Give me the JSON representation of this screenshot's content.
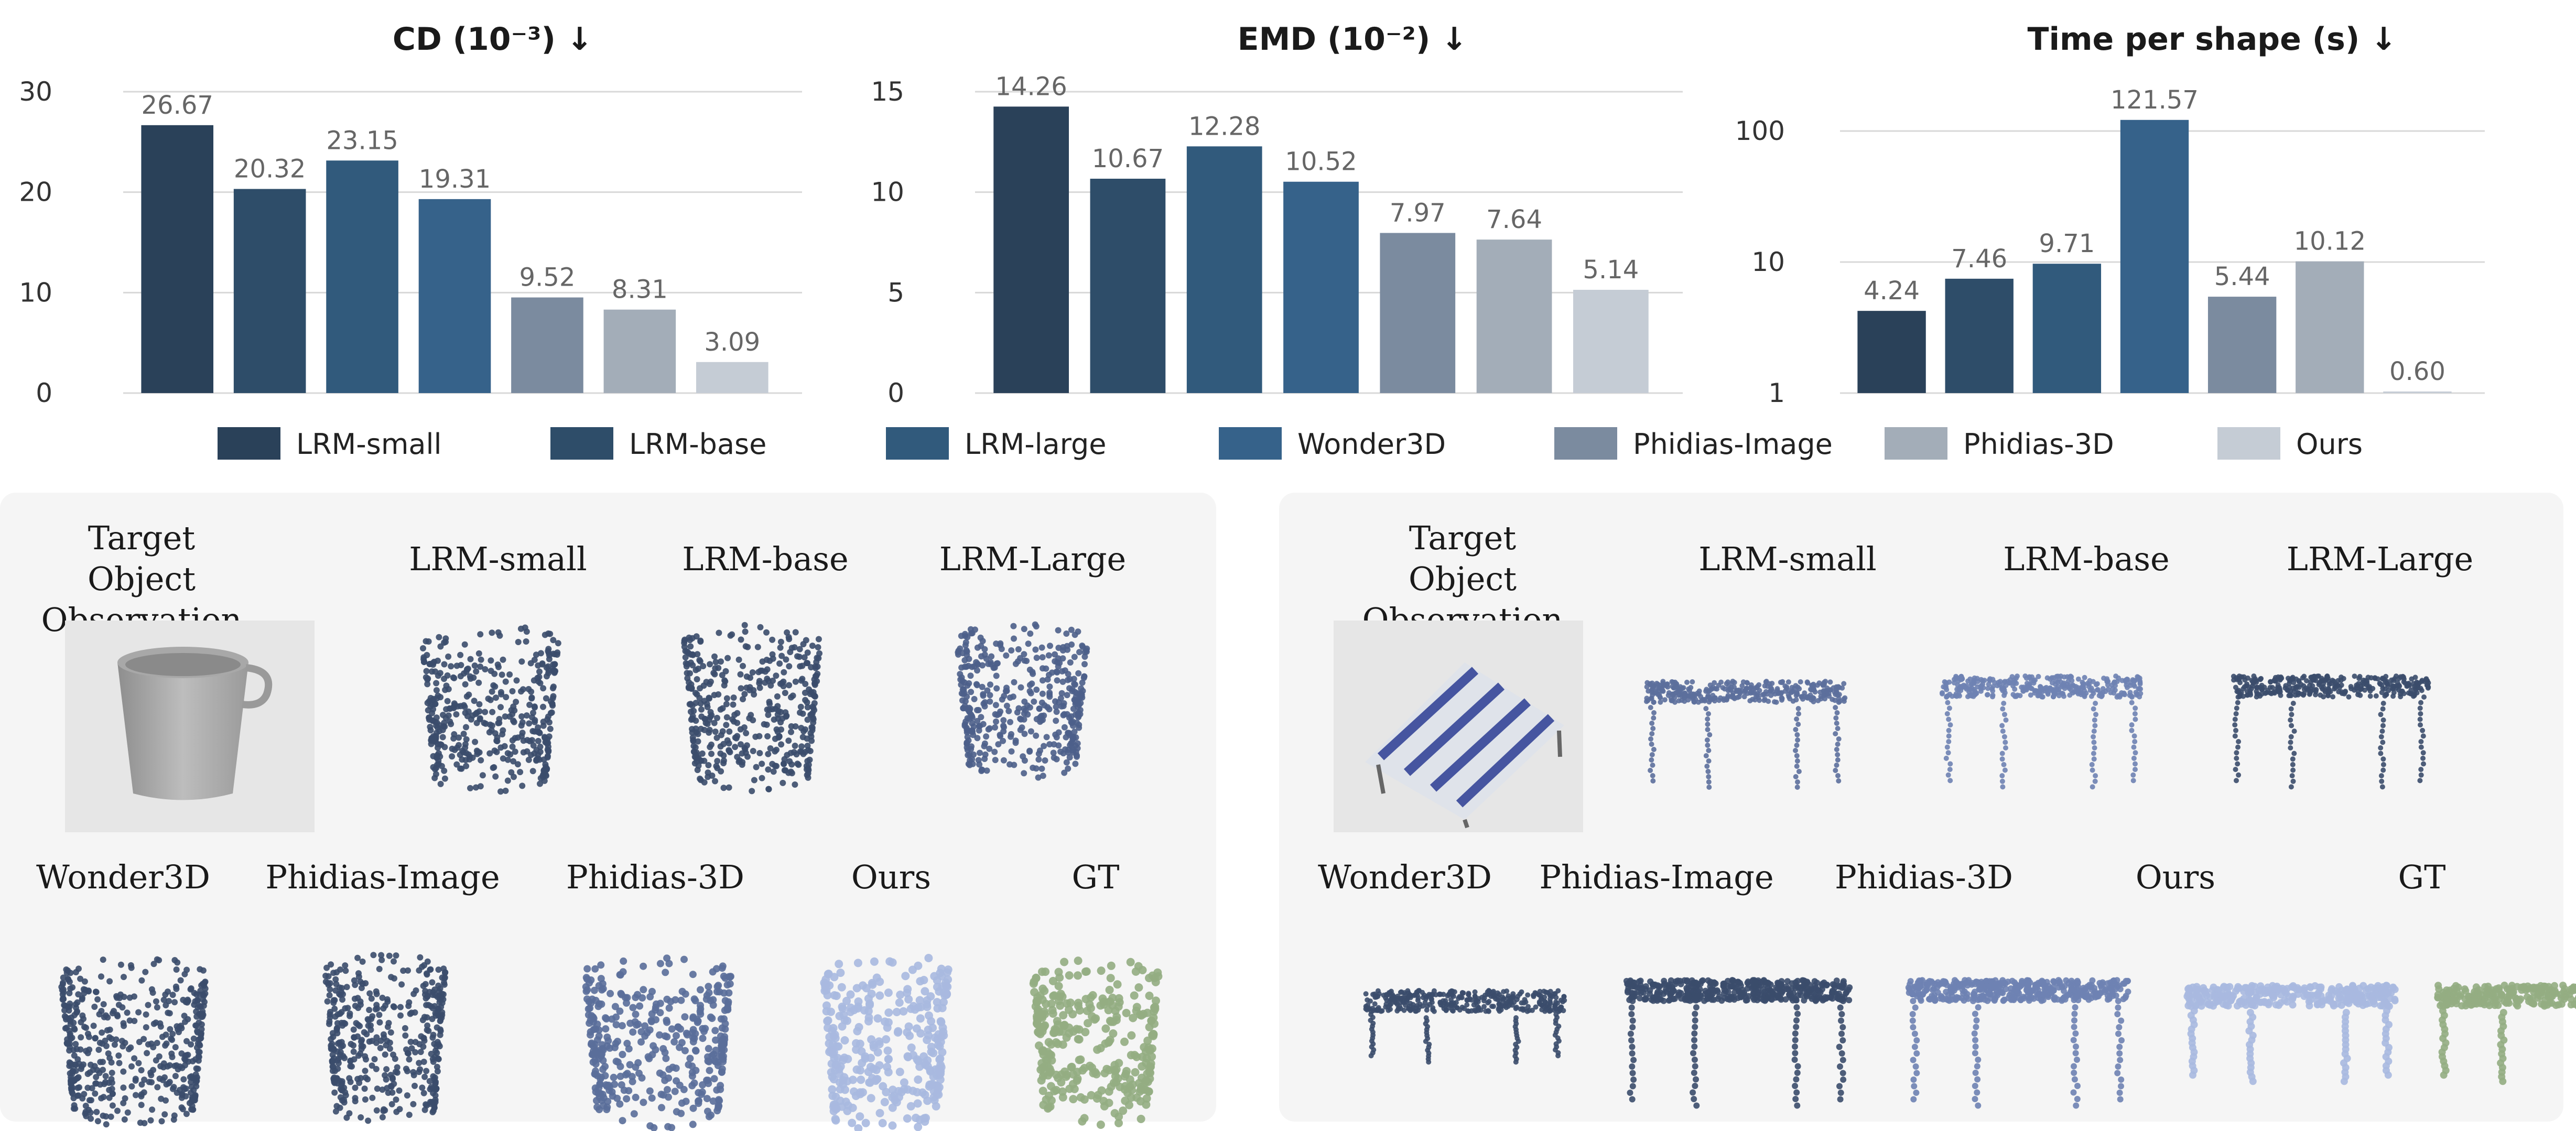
{
  "colors": {
    "series": [
      "#2a4159",
      "#2e4d69",
      "#315a7c",
      "#36628a",
      "#7b8b9f",
      "#a3adb8",
      "#c5ccd5"
    ],
    "panel_bg": "#f5f5f5",
    "point_dark": "#3b4d6b",
    "point_light": "#a9b9e0",
    "point_gt": "#94ad82"
  },
  "legend": [
    "LRM-small",
    "LRM-base",
    "LRM-large",
    "Wonder3D",
    "Phidias-Image",
    "Phidias-3D",
    "Ours"
  ],
  "chart_data": [
    {
      "type": "bar",
      "title": "CD (10⁻³) ↓",
      "categories": [
        "LRM-small",
        "LRM-base",
        "LRM-large",
        "Wonder3D",
        "Phidias-Image",
        "Phidias-3D",
        "Ours"
      ],
      "values": [
        26.67,
        20.32,
        23.15,
        19.31,
        9.52,
        8.31,
        3.09
      ],
      "value_labels": [
        "26.67",
        "20.32",
        "23.15",
        "19.31",
        "9.52",
        "8.31",
        "3.09"
      ],
      "yticks": [
        "0",
        "10",
        "20",
        "30"
      ],
      "ylim": [
        0,
        30
      ],
      "scale": "linear",
      "grid": true
    },
    {
      "type": "bar",
      "title": "EMD (10⁻²) ↓",
      "categories": [
        "LRM-small",
        "LRM-base",
        "LRM-large",
        "Wonder3D",
        "Phidias-Image",
        "Phidias-3D",
        "Ours"
      ],
      "values": [
        14.26,
        10.67,
        12.28,
        10.52,
        7.97,
        7.64,
        5.14
      ],
      "value_labels": [
        "14.26",
        "10.67",
        "12.28",
        "10.52",
        "7.97",
        "7.64",
        "5.14"
      ],
      "yticks": [
        "0",
        "5",
        "10",
        "15"
      ],
      "ylim": [
        0,
        15
      ],
      "scale": "linear",
      "grid": true
    },
    {
      "type": "bar",
      "title": "Time per shape (s) ↓",
      "categories": [
        "LRM-small",
        "LRM-base",
        "LRM-large",
        "Wonder3D",
        "Phidias-Image",
        "Phidias-3D",
        "Ours"
      ],
      "values": [
        4.24,
        7.46,
        9.71,
        121.57,
        5.44,
        10.12,
        0.6
      ],
      "value_labels": [
        "4.24",
        "7.46",
        "9.71",
        "121.57",
        "5.44",
        "10.12",
        "0.60"
      ],
      "yticks": [
        "1",
        "10",
        "100"
      ],
      "ylim": [
        1,
        100
      ],
      "scale": "log",
      "grid": true
    }
  ],
  "panels": {
    "left": {
      "observation_label": [
        "Target Object",
        "Observation"
      ],
      "top_labels": [
        "LRM-small",
        "LRM-base",
        "LRM-Large"
      ],
      "bottom_labels": [
        "Wonder3D",
        "Phidias-Image",
        "Phidias-3D",
        "Ours",
        "GT"
      ]
    },
    "right": {
      "observation_label": [
        "Target Object",
        "Observation"
      ],
      "top_labels": [
        "LRM-small",
        "LRM-base",
        "LRM-Large"
      ],
      "bottom_labels": [
        "Wonder3D",
        "Phidias-Image",
        "Phidias-3D",
        "Ours",
        "GT"
      ]
    }
  }
}
